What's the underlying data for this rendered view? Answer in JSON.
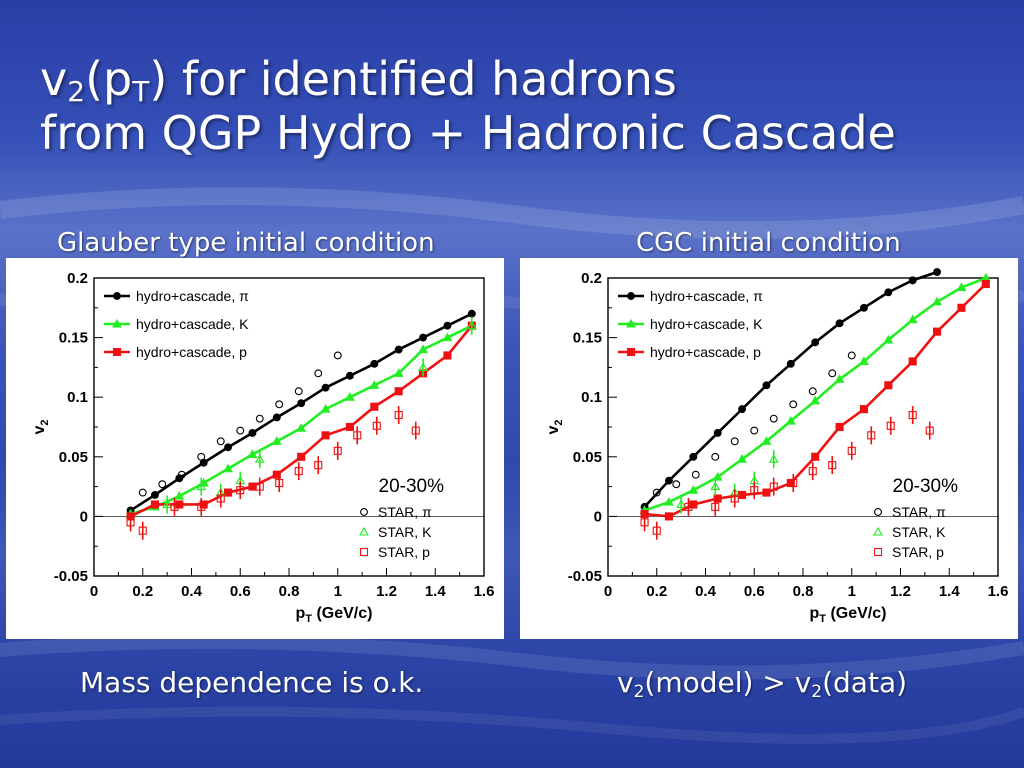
{
  "slide": {
    "title_line1_parts": [
      "v",
      "2",
      "(p",
      "T",
      ") for identified hadrons"
    ],
    "title_line2": "from QGP Hydro + Hadronic Cascade",
    "left_header": "Glauber type initial condition",
    "right_header": "CGC initial condition",
    "left_caption": "Mass dependence is o.k.",
    "right_caption_parts": [
      "v",
      "2",
      "(model) > v",
      "2",
      "(data)"
    ]
  },
  "colors": {
    "pi": "#000000",
    "K": "#22ee22",
    "p": "#ee1111"
  },
  "chart_data": [
    {
      "type": "line",
      "header": "Glauber type initial condition",
      "xlabel": "pT (GeV/c)",
      "ylabel": "v2",
      "xlim": [
        0,
        1.6
      ],
      "ylim": [
        -0.05,
        0.2
      ],
      "xticks": [
        "0",
        "0.2",
        "0.4",
        "0.6",
        "0.8",
        "1",
        "1.2",
        "1.4",
        "1.6"
      ],
      "yticks": [
        "-0.05",
        "0",
        "0.05",
        "0.1",
        "0.15",
        "0.2"
      ],
      "annotation": "20-30%",
      "legend_position": "top-left",
      "series": [
        {
          "name": "hydro+cascade, π",
          "key": "pi",
          "x": [
            0.15,
            0.25,
            0.35,
            0.45,
            0.55,
            0.65,
            0.75,
            0.85,
            0.95,
            1.05,
            1.15,
            1.25,
            1.35,
            1.45,
            1.55
          ],
          "values": [
            0.005,
            0.018,
            0.032,
            0.045,
            0.058,
            0.07,
            0.083,
            0.095,
            0.108,
            0.118,
            0.128,
            0.14,
            0.15,
            0.16,
            0.17
          ]
        },
        {
          "name": "hydro+cascade, K",
          "key": "K",
          "x": [
            0.15,
            0.25,
            0.35,
            0.45,
            0.55,
            0.65,
            0.75,
            0.85,
            0.95,
            1.05,
            1.15,
            1.25,
            1.35,
            1.45,
            1.55
          ],
          "values": [
            0.002,
            0.008,
            0.017,
            0.028,
            0.04,
            0.052,
            0.063,
            0.074,
            0.09,
            0.1,
            0.11,
            0.12,
            0.14,
            0.15,
            0.16
          ]
        },
        {
          "name": "hydro+cascade, p",
          "key": "p",
          "x": [
            0.15,
            0.25,
            0.35,
            0.45,
            0.55,
            0.65,
            0.75,
            0.85,
            0.95,
            1.05,
            1.15,
            1.25,
            1.35,
            1.45,
            1.55
          ],
          "values": [
            0.0,
            0.01,
            0.01,
            0.01,
            0.02,
            0.025,
            0.035,
            0.05,
            0.068,
            0.075,
            0.092,
            0.105,
            0.12,
            0.135,
            0.16
          ]
        }
      ],
      "data": [
        {
          "name": "STAR, π",
          "key": "pi",
          "marker": "circle",
          "x": [
            0.2,
            0.28,
            0.36,
            0.44,
            0.52,
            0.6,
            0.68,
            0.76,
            0.84,
            0.92,
            1.0
          ],
          "values": [
            0.02,
            0.027,
            0.035,
            0.05,
            0.063,
            0.072,
            0.082,
            0.094,
            0.105,
            0.12,
            0.135
          ]
        },
        {
          "name": "STAR, K",
          "key": "K",
          "marker": "triangle",
          "x": [
            0.3,
            0.44,
            0.52,
            0.6,
            0.68,
            1.35,
            1.55
          ],
          "values": [
            0.01,
            0.025,
            0.02,
            0.03,
            0.048,
            0.125,
            0.16
          ]
        },
        {
          "name": "STAR, p",
          "key": "p",
          "marker": "square",
          "x": [
            0.15,
            0.2,
            0.33,
            0.44,
            0.52,
            0.6,
            0.68,
            0.76,
            0.84,
            0.92,
            1.0,
            1.08,
            1.16,
            1.25,
            1.32
          ],
          "values": [
            -0.005,
            -0.012,
            0.008,
            0.008,
            0.015,
            0.022,
            0.025,
            0.028,
            0.038,
            0.043,
            0.055,
            0.068,
            0.076,
            0.085,
            0.072
          ]
        }
      ]
    },
    {
      "type": "line",
      "header": "CGC initial condition",
      "xlabel": "pT (GeV/c)",
      "ylabel": "v2",
      "xlim": [
        0,
        1.6
      ],
      "ylim": [
        -0.05,
        0.2
      ],
      "xticks": [
        "0",
        "0.2",
        "0.4",
        "0.6",
        "0.8",
        "1",
        "1.2",
        "1.4",
        "1.6"
      ],
      "yticks": [
        "-0.05",
        "0",
        "0.05",
        "0.1",
        "0.15",
        "0.2"
      ],
      "annotation": "20-30%",
      "legend_position": "top-left",
      "series": [
        {
          "name": "hydro+cascade, π",
          "key": "pi",
          "x": [
            0.15,
            0.25,
            0.35,
            0.45,
            0.55,
            0.65,
            0.75,
            0.85,
            0.95,
            1.05,
            1.15,
            1.25,
            1.35
          ],
          "values": [
            0.008,
            0.03,
            0.05,
            0.07,
            0.09,
            0.11,
            0.128,
            0.146,
            0.162,
            0.175,
            0.188,
            0.198,
            0.205
          ]
        },
        {
          "name": "hydro+cascade, K",
          "key": "K",
          "x": [
            0.15,
            0.25,
            0.35,
            0.45,
            0.55,
            0.65,
            0.75,
            0.85,
            0.95,
            1.05,
            1.15,
            1.25,
            1.35,
            1.45,
            1.55
          ],
          "values": [
            0.005,
            0.012,
            0.022,
            0.033,
            0.048,
            0.063,
            0.08,
            0.097,
            0.115,
            0.13,
            0.148,
            0.165,
            0.18,
            0.192,
            0.2
          ]
        },
        {
          "name": "hydro+cascade, p",
          "key": "p",
          "x": [
            0.15,
            0.25,
            0.35,
            0.45,
            0.55,
            0.65,
            0.75,
            0.85,
            0.95,
            1.05,
            1.15,
            1.25,
            1.35,
            1.45,
            1.55
          ],
          "values": [
            0.002,
            0.0,
            0.01,
            0.015,
            0.018,
            0.02,
            0.028,
            0.05,
            0.075,
            0.09,
            0.11,
            0.13,
            0.155,
            0.175,
            0.195
          ]
        }
      ],
      "data": [
        {
          "name": "STAR, π",
          "key": "pi",
          "marker": "circle",
          "x": [
            0.2,
            0.28,
            0.36,
            0.44,
            0.52,
            0.6,
            0.68,
            0.76,
            0.84,
            0.92,
            1.0
          ],
          "values": [
            0.02,
            0.027,
            0.035,
            0.05,
            0.063,
            0.072,
            0.082,
            0.094,
            0.105,
            0.12,
            0.135
          ]
        },
        {
          "name": "STAR, K",
          "key": "K",
          "marker": "triangle",
          "x": [
            0.3,
            0.44,
            0.52,
            0.6,
            0.68
          ],
          "values": [
            0.01,
            0.025,
            0.02,
            0.03,
            0.048
          ]
        },
        {
          "name": "STAR, p",
          "key": "p",
          "marker": "square",
          "x": [
            0.15,
            0.2,
            0.33,
            0.44,
            0.52,
            0.6,
            0.68,
            0.76,
            0.84,
            0.92,
            1.0,
            1.08,
            1.16,
            1.25,
            1.32
          ],
          "values": [
            -0.005,
            -0.012,
            0.008,
            0.008,
            0.015,
            0.022,
            0.025,
            0.028,
            0.038,
            0.043,
            0.055,
            0.068,
            0.076,
            0.085,
            0.072
          ]
        }
      ]
    }
  ]
}
